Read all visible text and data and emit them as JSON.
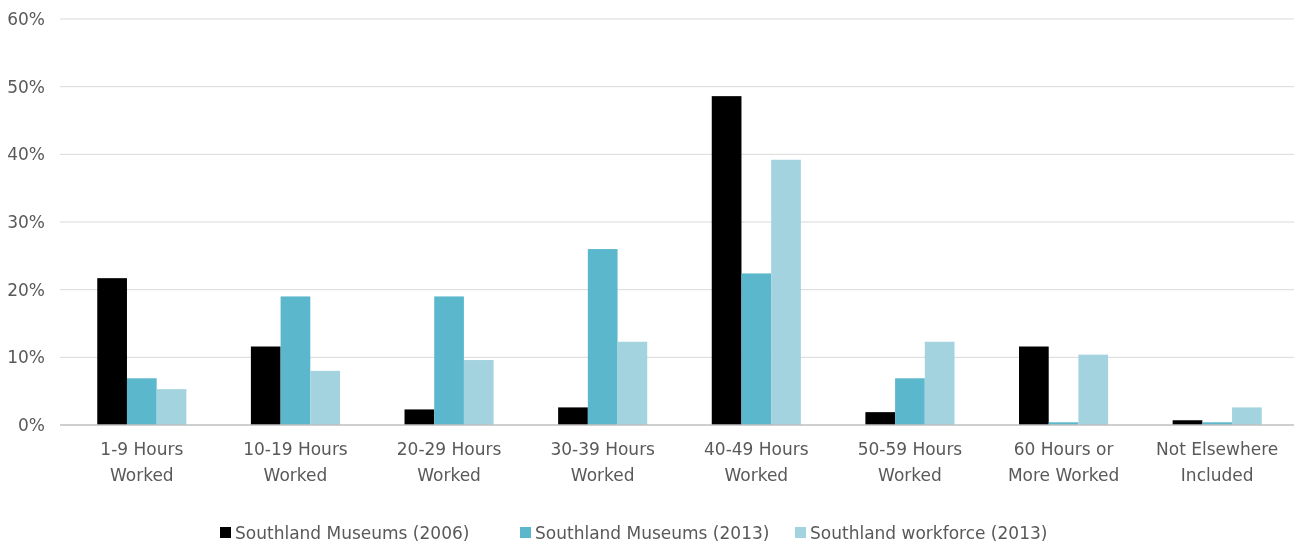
{
  "chart_data": {
    "type": "bar",
    "categories": [
      "1-9 Hours Worked",
      "10-19 Hours Worked",
      "20-29 Hours Worked",
      "30-39 Hours Worked",
      "40-49 Hours Worked",
      "50-59 Hours Worked",
      "60 Hours or More Worked",
      "Not Elsewhere Included"
    ],
    "series": [
      {
        "name": "Southland Museums (2006)",
        "color": "#000000",
        "values": [
          21.7,
          11.6,
          2.3,
          2.6,
          48.6,
          1.9,
          11.6,
          0.7
        ]
      },
      {
        "name": "Southland Museums (2013)",
        "color": "#5bb8cc",
        "values": [
          6.9,
          19,
          19,
          26,
          22.4,
          6.9,
          0.4,
          0.4
        ]
      },
      {
        "name": "Southland workforce (2013)",
        "color": "#a3d3df",
        "values": [
          5.3,
          8,
          9.6,
          12.3,
          39.2,
          12.3,
          10.4,
          2.6
        ]
      }
    ],
    "ylim": [
      0,
      60
    ],
    "yticks": [
      {
        "value": 0,
        "label": "0%"
      },
      {
        "value": 10,
        "label": "10%"
      },
      {
        "value": 20,
        "label": "20%"
      },
      {
        "value": 30,
        "label": "30%"
      },
      {
        "value": 40,
        "label": "40%"
      },
      {
        "value": 50,
        "label": "50%"
      },
      {
        "value": 60,
        "label": "60%"
      }
    ],
    "grid": "y",
    "legend": "bottom"
  }
}
